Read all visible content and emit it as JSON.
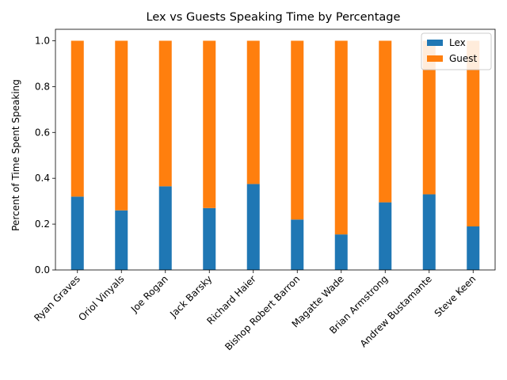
{
  "chart_data": {
    "type": "bar",
    "stacked": true,
    "title": "Lex vs Guests Speaking Time by Percentage",
    "xlabel": "",
    "ylabel": "Percent of Time Spent Speaking",
    "ylim": [
      0,
      1.05
    ],
    "yticks": [
      "0.0",
      "0.2",
      "0.4",
      "0.6",
      "0.8",
      "1.0"
    ],
    "categories": [
      "Ryan Graves",
      "Oriol Vinyals",
      "Joe Rogan",
      "Jack Barsky",
      "Richard Haier",
      "Bishop Robert Barron",
      "Magatte Wade",
      "Brian Armstrong",
      "Andrew Bustamante",
      "Steve Keen"
    ],
    "series": [
      {
        "name": "Lex",
        "color": "#1f77b4",
        "values": [
          0.32,
          0.26,
          0.365,
          0.27,
          0.375,
          0.22,
          0.155,
          0.295,
          0.33,
          0.19
        ]
      },
      {
        "name": "Guest",
        "color": "#ff7f0e",
        "values": [
          0.68,
          0.74,
          0.635,
          0.73,
          0.625,
          0.78,
          0.845,
          0.705,
          0.67,
          0.81
        ]
      }
    ],
    "legend": "top-right",
    "grid": false
  }
}
